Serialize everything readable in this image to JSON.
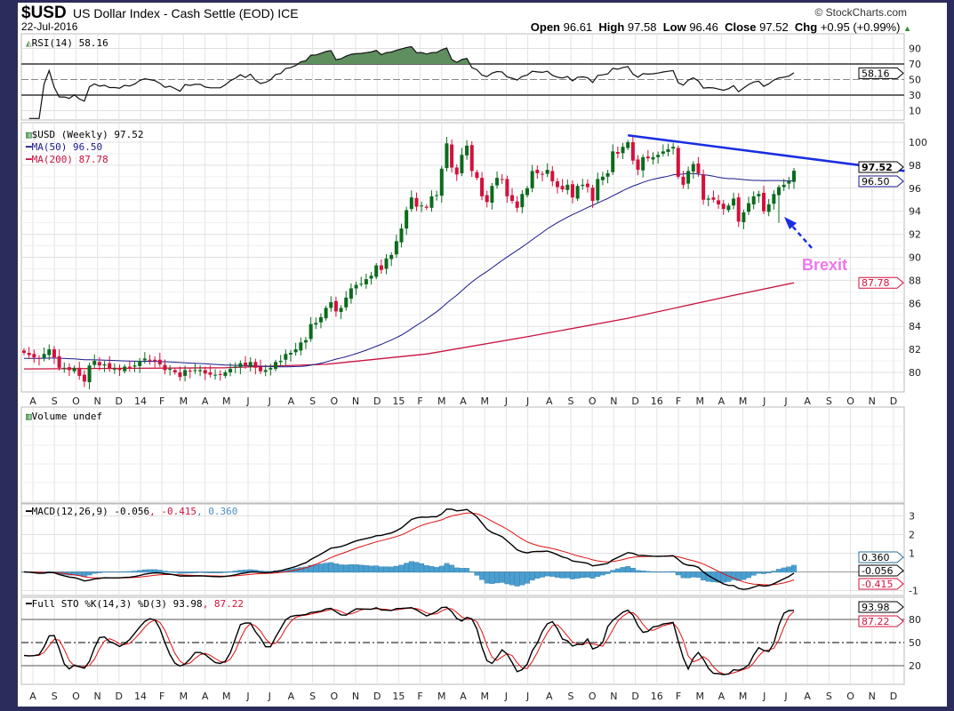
{
  "header": {
    "symbol": "$USD",
    "name": "US Dollar Index - Cash Settle (EOD) ICE",
    "date": "22-Jul-2016",
    "copyright": "© StockCharts.com",
    "open_label": "Open",
    "open": "96.61",
    "high_label": "High",
    "high": "97.58",
    "low_label": "Low",
    "low": "96.46",
    "close_label": "Close",
    "close": "97.52",
    "chg_label": "Chg",
    "chg": "+0.95 (+0.99%)"
  },
  "panels": {
    "rsi": {
      "label": "RSI(14) 58.16",
      "tag": "58.16",
      "ticks": [
        "90",
        "70",
        "50",
        "30",
        "10"
      ]
    },
    "price": {
      "label": "$USD (Weekly) 97.52",
      "ma50_label": "MA(50) 96.50",
      "ma200_label": "MA(200) 87.78",
      "tag_close": "97.52",
      "tag_ma50": "96.50",
      "tag_ma200": "87.78",
      "ticks": [
        "100",
        "98",
        "96",
        "94",
        "92",
        "90",
        "88",
        "86",
        "84",
        "82",
        "80"
      ]
    },
    "volume": {
      "label": "Volume undef"
    },
    "macd": {
      "label": "MACD(12,26,9) -0.056",
      "signal": ", -0.415",
      "hist": ", 0.360",
      "tag_macd": "-0.056",
      "tag_signal": "-0.415",
      "tag_hist": "0.360",
      "ticks": [
        "3",
        "2",
        "1",
        "-1"
      ]
    },
    "sto": {
      "label": "Full STO %K(14,3) %D(3) 93.98",
      "d": ", 87.22",
      "tag_k": "93.98",
      "tag_d": "87.22",
      "ticks": [
        "80",
        "50",
        "20"
      ]
    }
  },
  "annotation": {
    "text": "Brexit"
  },
  "colors": {
    "up": "#0b6b1d",
    "down": "#d4103c",
    "ma50": "#1a1a8c",
    "ma200": "#c8103c",
    "trend": "#1a2ee0",
    "rsi_fill": "#5f8f5f",
    "macd_hist": "#4a9fd0",
    "brexit": "#ee77ee"
  },
  "chart_data": {
    "type": "candlestick",
    "title": "$USD US Dollar Index - Cash Settle (EOD) ICE",
    "interval": "weekly",
    "x_months": [
      "A",
      "S",
      "O",
      "N",
      "D",
      "14",
      "F",
      "M",
      "A",
      "M",
      "J",
      "J",
      "A",
      "S",
      "O",
      "N",
      "D",
      "15",
      "F",
      "M",
      "A",
      "M",
      "J",
      "J",
      "A",
      "S",
      "O",
      "N",
      "D",
      "16",
      "F",
      "M",
      "A",
      "M",
      "J",
      "J",
      "A",
      "S",
      "O",
      "N",
      "D"
    ],
    "ylim": [
      78.8,
      101.5
    ],
    "closes": [
      81.7,
      81.5,
      81.3,
      81.2,
      81.6,
      82.0,
      81.3,
      80.4,
      80.4,
      80.2,
      80.4,
      79.7,
      79.2,
      80.6,
      81.0,
      80.6,
      80.7,
      80.3,
      80.3,
      80.2,
      80.5,
      80.4,
      80.6,
      81.0,
      81.2,
      81.1,
      81.0,
      80.7,
      80.2,
      80.3,
      80.0,
      79.6,
      80.2,
      80.1,
      80.2,
      80.2,
      79.9,
      79.8,
      79.8,
      79.8,
      80.0,
      80.3,
      80.5,
      80.8,
      80.6,
      80.9,
      80.4,
      80.1,
      80.2,
      80.4,
      80.9,
      81.0,
      81.6,
      81.7,
      82.0,
      82.6,
      82.8,
      84.2,
      84.3,
      84.8,
      85.6,
      86.1,
      85.3,
      85.6,
      86.5,
      87.3,
      87.6,
      87.7,
      88.1,
      88.4,
      89.3,
      88.9,
      89.9,
      90.2,
      91.4,
      92.5,
      94.1,
      95.2,
      94.4,
      94.5,
      94.3,
      95.3,
      95.4,
      97.7,
      99.9,
      97.8,
      97.2,
      98.9,
      99.7,
      97.5,
      96.9,
      95.3,
      94.8,
      96.2,
      96.9,
      96.8,
      95.3,
      94.9,
      94.3,
      95.5,
      96.0,
      97.5,
      97.3,
      97.2,
      97.6,
      96.6,
      96.1,
      95.9,
      96.3,
      95.2,
      96.2,
      96.3,
      96.1,
      94.9,
      96.8,
      97.0,
      97.3,
      99.2,
      99.0,
      99.6,
      100.0,
      98.4,
      97.6,
      98.7,
      98.6,
      98.7,
      98.9,
      99.2,
      99.4,
      99.6,
      97.0,
      96.3,
      97.5,
      98.1,
      97.3,
      95.0,
      95.1,
      95.0,
      94.6,
      94.2,
      94.5,
      95.1,
      93.1,
      93.9,
      94.7,
      95.3,
      95.5,
      94.0,
      94.6,
      95.5,
      96.1,
      96.3,
      96.6,
      97.52
    ],
    "ma200": [
      [
        0,
        80.3
      ],
      [
        40,
        80.4
      ],
      [
        60,
        80.7
      ],
      [
        80,
        81.6
      ],
      [
        100,
        83.1
      ],
      [
        120,
        84.7
      ],
      [
        140,
        86.6
      ],
      [
        153,
        87.78
      ]
    ],
    "trendline": [
      [
        120,
        100.6
      ],
      [
        175,
        97.5
      ]
    ],
    "rsi_levels": [
      70,
      50,
      30
    ],
    "sto_levels": [
      80,
      50,
      20
    ]
  }
}
